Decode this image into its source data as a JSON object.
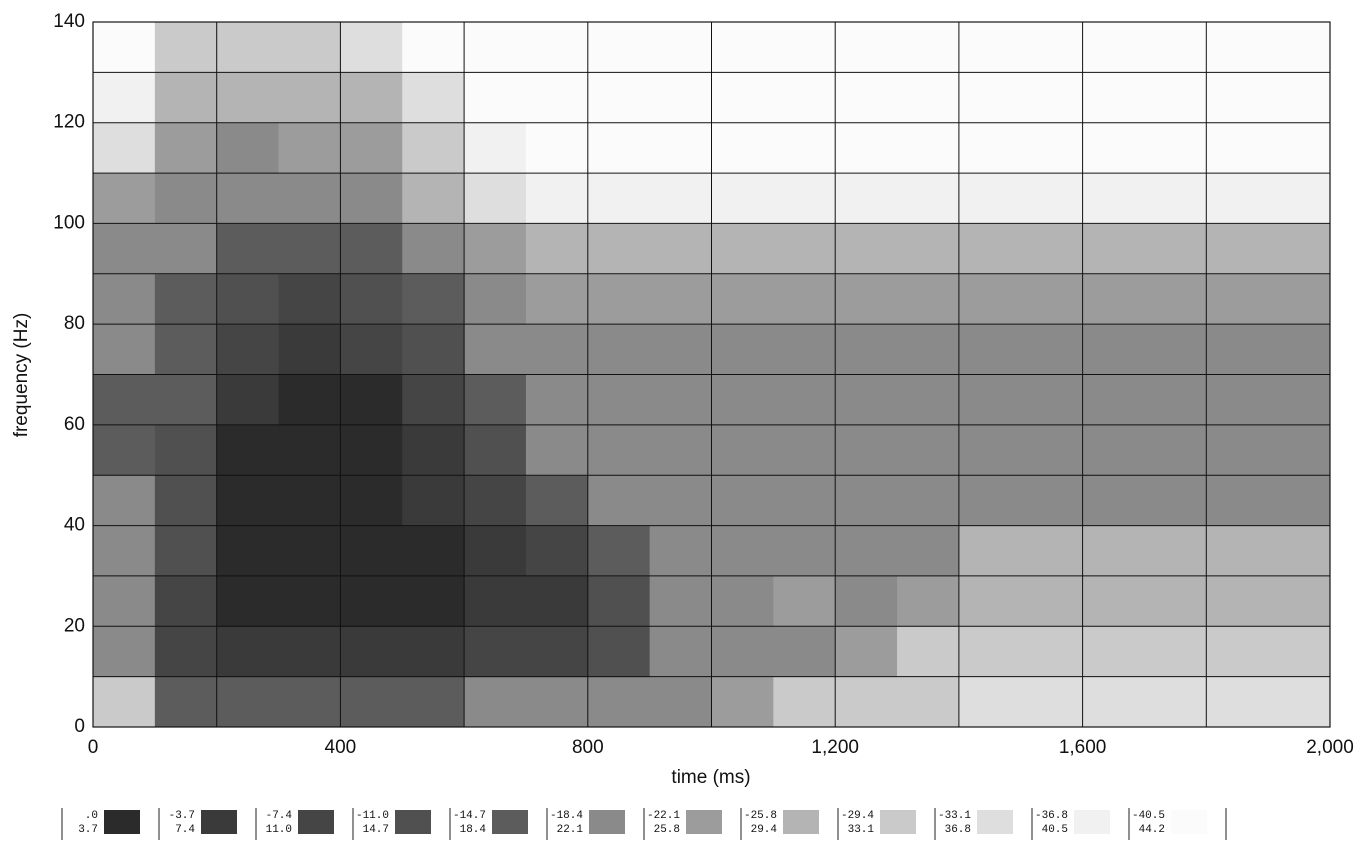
{
  "chart_data": {
    "type": "heatmap",
    "x_label": "time (ms)",
    "y_label": "frequency (Hz)",
    "xlim": [
      0,
      2000
    ],
    "ylim": [
      0,
      140
    ],
    "xticks": [
      0,
      400,
      800,
      {
        "value": 1200,
        "label": "1,200"
      },
      {
        "value": 1600,
        "label": "1,600"
      },
      {
        "value": 2000,
        "label": "2,000"
      }
    ],
    "xminor": [
      200,
      600,
      1000,
      1400,
      1800
    ],
    "yticks": [
      0,
      20,
      40,
      60,
      80,
      100,
      120,
      140
    ],
    "yminor": [
      10,
      30,
      50,
      70,
      90,
      110,
      130
    ],
    "grid": true,
    "xbins": [
      0,
      100,
      200,
      300,
      400,
      500,
      600,
      700,
      800,
      900,
      1000,
      1100,
      1200,
      1300,
      1400,
      1500,
      1600,
      1700,
      1800,
      1900,
      2000
    ],
    "ybins": [
      0,
      10,
      20,
      30,
      40,
      50,
      60,
      70,
      80,
      90,
      100,
      110,
      120,
      130,
      140
    ],
    "values": [
      [
        8,
        4,
        4,
        4,
        4,
        4,
        5,
        5,
        5,
        5,
        6,
        8,
        8,
        8,
        9,
        9,
        9,
        9,
        9,
        9
      ],
      [
        5,
        2,
        1,
        1,
        1,
        1,
        2,
        2,
        3,
        5,
        5,
        5,
        6,
        8,
        8,
        8,
        8,
        8,
        8,
        8
      ],
      [
        5,
        2,
        0,
        0,
        0,
        0,
        1,
        1,
        3,
        5,
        5,
        6,
        5,
        6,
        7,
        7,
        7,
        7,
        7,
        7
      ],
      [
        5,
        3,
        0,
        0,
        0,
        0,
        1,
        2,
        4,
        5,
        5,
        5,
        5,
        5,
        7,
        7,
        7,
        7,
        7,
        7
      ],
      [
        5,
        3,
        0,
        0,
        0,
        1,
        2,
        4,
        5,
        5,
        5,
        5,
        5,
        5,
        5,
        5,
        5,
        5,
        5,
        5
      ],
      [
        4,
        3,
        0,
        0,
        0,
        1,
        3,
        5,
        5,
        5,
        5,
        5,
        5,
        5,
        5,
        5,
        5,
        5,
        5,
        5
      ],
      [
        4,
        4,
        1,
        0,
        0,
        2,
        4,
        5,
        5,
        5,
        5,
        5,
        5,
        5,
        5,
        5,
        5,
        5,
        5,
        5
      ],
      [
        5,
        4,
        2,
        1,
        2,
        3,
        5,
        5,
        5,
        5,
        5,
        5,
        5,
        5,
        5,
        5,
        5,
        5,
        5,
        5
      ],
      [
        5,
        4,
        3,
        2,
        3,
        4,
        5,
        6,
        6,
        6,
        6,
        6,
        6,
        6,
        6,
        6,
        6,
        6,
        6,
        6
      ],
      [
        5,
        5,
        4,
        4,
        4,
        5,
        6,
        7,
        7,
        7,
        7,
        7,
        7,
        7,
        7,
        7,
        7,
        7,
        7,
        7
      ],
      [
        6,
        5,
        5,
        5,
        5,
        7,
        9,
        10,
        10,
        10,
        10,
        10,
        10,
        10,
        10,
        10,
        10,
        10,
        10,
        10
      ],
      [
        9,
        6,
        5,
        6,
        6,
        8,
        10,
        11,
        11,
        11,
        11,
        11,
        11,
        11,
        11,
        11,
        11,
        11,
        11,
        11
      ],
      [
        10,
        7,
        7,
        7,
        7,
        9,
        11,
        11,
        11,
        11,
        11,
        11,
        11,
        11,
        11,
        11,
        11,
        11,
        11,
        11
      ],
      [
        11,
        8,
        8,
        8,
        9,
        11,
        11,
        11,
        11,
        11,
        11,
        11,
        11,
        11,
        11,
        11,
        11,
        11,
        11,
        11
      ]
    ],
    "levels": [
      {
        "from": {
          "value": 0,
          "label": ".0"
        },
        "to": 3.7,
        "color": "#2b2b2b"
      },
      {
        "from": -3.7,
        "to": 7.4,
        "color": "#3a3a3a"
      },
      {
        "from": -7.4,
        "to": {
          "value": 11,
          "label": "11.0"
        },
        "color": "#454545"
      },
      {
        "from": {
          "value": -11,
          "label": "-11.0"
        },
        "to": 14.7,
        "color": "#505050"
      },
      {
        "from": -14.7,
        "to": 18.4,
        "color": "#5c5c5c"
      },
      {
        "from": -18.4,
        "to": 22.1,
        "color": "#8a8a8a"
      },
      {
        "from": -22.1,
        "to": 25.8,
        "color": "#9c9c9c"
      },
      {
        "from": -25.8,
        "to": 29.4,
        "color": "#b4b4b4"
      },
      {
        "from": -29.4,
        "to": 33.1,
        "color": "#cacaca"
      },
      {
        "from": -33.1,
        "to": 36.8,
        "color": "#dedede"
      },
      {
        "from": -36.8,
        "to": 40.5,
        "color": "#f1f1f1"
      },
      {
        "from": -40.5,
        "to": 44.2,
        "color": "#fbfbfb"
      }
    ]
  }
}
